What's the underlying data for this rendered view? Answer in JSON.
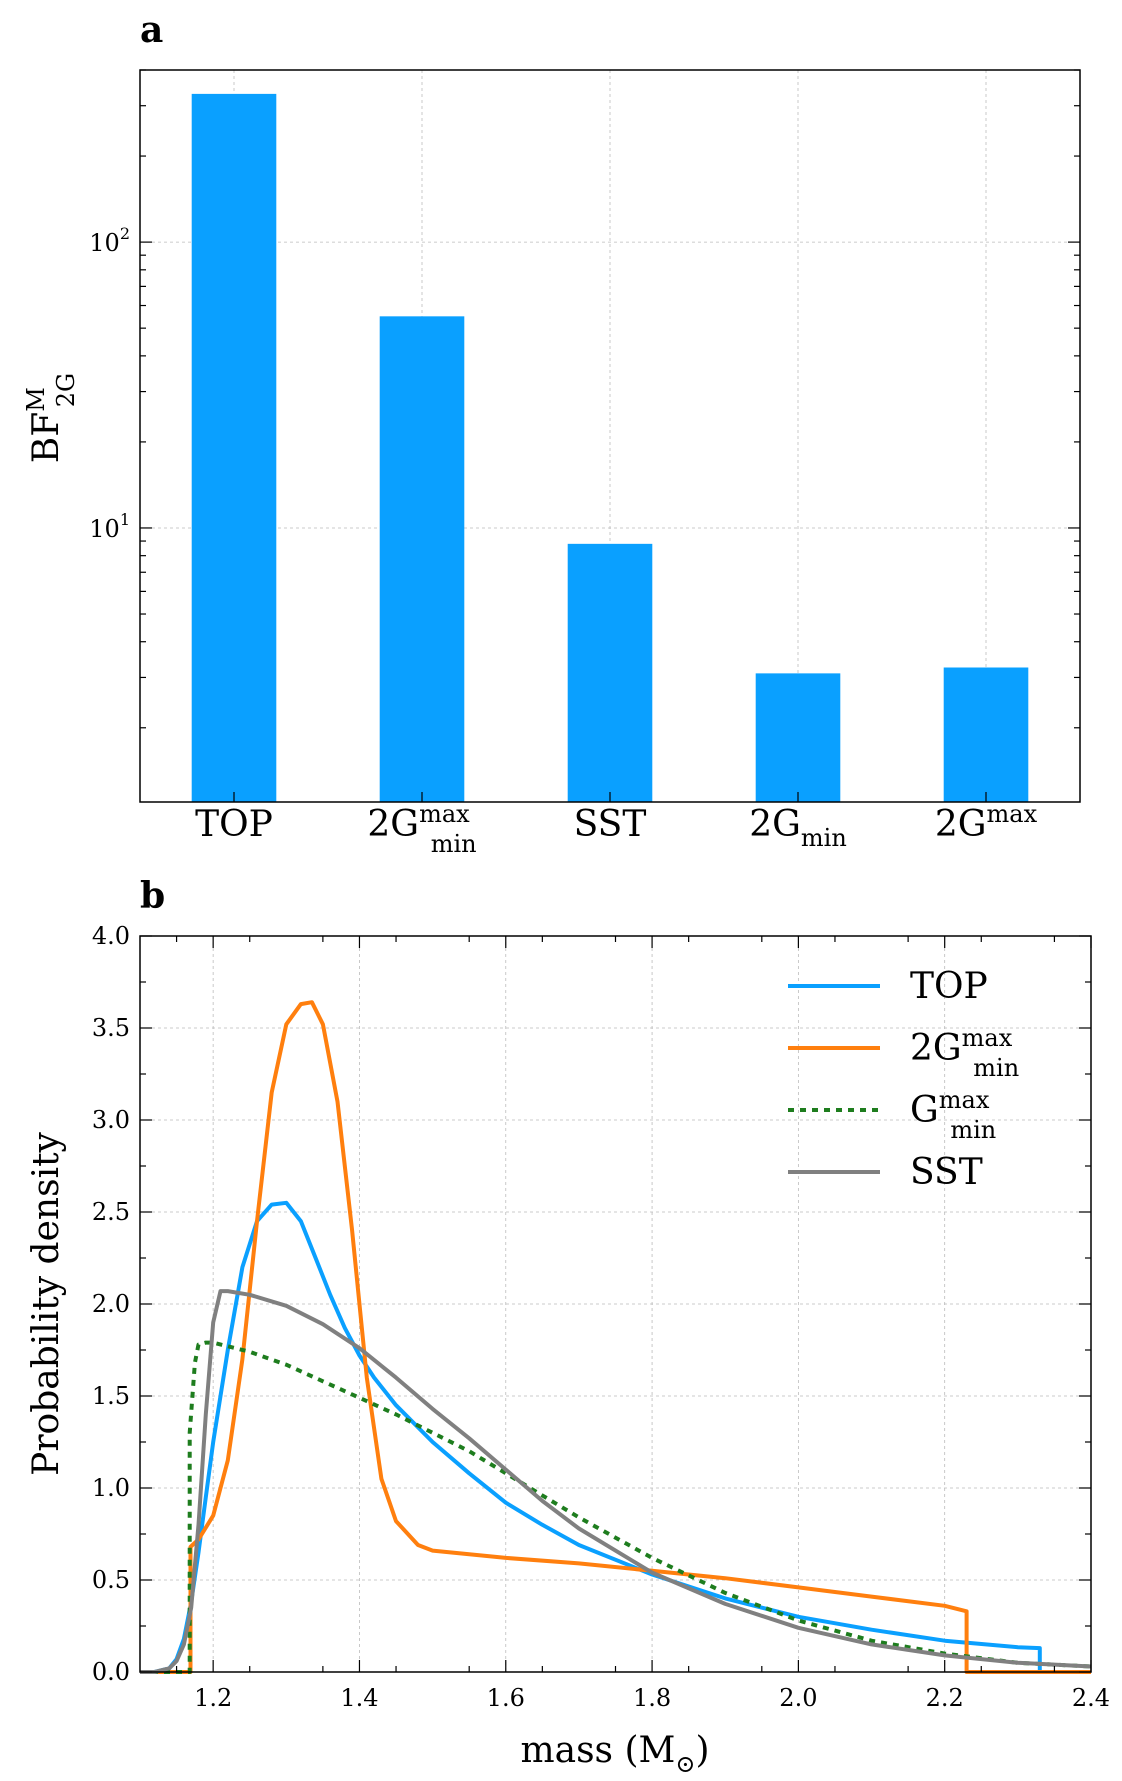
{
  "chart_data": [
    {
      "panel": "a",
      "type": "bar",
      "yscale": "log",
      "ylabel": {
        "base": "BF",
        "sup": "M",
        "sub": "2G"
      },
      "ylim": [
        1.1,
        400
      ],
      "yticks": [
        {
          "value": 10,
          "base": "10",
          "exp": "1"
        },
        {
          "value": 100,
          "base": "10",
          "exp": "2"
        }
      ],
      "color": "#0aa0ff",
      "categories": [
        {
          "id": "TOP",
          "base": "TOP",
          "sup": "",
          "sub": ""
        },
        {
          "id": "2Gminmax",
          "base": "2G",
          "sup": "max",
          "sub": "min"
        },
        {
          "id": "SST",
          "base": "SST",
          "sup": "",
          "sub": ""
        },
        {
          "id": "2Gmin",
          "base": "2G",
          "sup": "",
          "sub": "min"
        },
        {
          "id": "2Gmax",
          "base": "2G",
          "sup": "max",
          "sub": ""
        }
      ],
      "values": [
        330,
        55,
        8.8,
        3.1,
        3.25
      ]
    },
    {
      "panel": "b",
      "type": "line",
      "xlabel": {
        "text": "mass (M",
        "sub": "⊙",
        "close": ")"
      },
      "ylabel": "Probability density",
      "xlim": [
        1.1,
        2.4
      ],
      "ylim": [
        0,
        4.0
      ],
      "xticks": [
        "1.2",
        "1.4",
        "1.6",
        "1.8",
        "2.0",
        "2.2",
        "2.4"
      ],
      "yticks": [
        "0.0",
        "0.5",
        "1.0",
        "1.5",
        "2.0",
        "2.5",
        "3.0",
        "3.5",
        "4.0"
      ],
      "series": [
        {
          "name": "TOP",
          "legend": {
            "base": "TOP",
            "sup": "",
            "sub": ""
          },
          "color": "#0aa0ff",
          "dash": "",
          "x": [
            1.1,
            1.12,
            1.14,
            1.15,
            1.16,
            1.17,
            1.18,
            1.19,
            1.2,
            1.22,
            1.24,
            1.26,
            1.28,
            1.3,
            1.32,
            1.34,
            1.36,
            1.38,
            1.4,
            1.42,
            1.45,
            1.5,
            1.55,
            1.6,
            1.65,
            1.7,
            1.8,
            1.9,
            2.0,
            2.1,
            2.2,
            2.3,
            2.33,
            2.33,
            2.4
          ],
          "y": [
            0.0,
            0.0,
            0.02,
            0.07,
            0.18,
            0.38,
            0.65,
            0.95,
            1.25,
            1.75,
            2.2,
            2.45,
            2.54,
            2.55,
            2.45,
            2.25,
            2.05,
            1.87,
            1.72,
            1.6,
            1.45,
            1.25,
            1.08,
            0.92,
            0.8,
            0.69,
            0.53,
            0.4,
            0.3,
            0.23,
            0.17,
            0.135,
            0.13,
            0.0,
            0.0
          ]
        },
        {
          "name": "2Gminmax",
          "legend": {
            "base": "2G",
            "sup": "max",
            "sub": "min"
          },
          "color": "#ff7f0e",
          "dash": "",
          "x": [
            1.1,
            1.169,
            1.169,
            1.18,
            1.2,
            1.22,
            1.24,
            1.26,
            1.28,
            1.3,
            1.32,
            1.335,
            1.35,
            1.37,
            1.39,
            1.41,
            1.43,
            1.45,
            1.48,
            1.5,
            1.55,
            1.6,
            1.7,
            1.8,
            1.9,
            2.0,
            2.1,
            2.2,
            2.23,
            2.23,
            2.4
          ],
          "y": [
            0.0,
            0.0,
            0.68,
            0.72,
            0.85,
            1.15,
            1.7,
            2.45,
            3.15,
            3.52,
            3.63,
            3.64,
            3.52,
            3.1,
            2.4,
            1.6,
            1.05,
            0.82,
            0.69,
            0.66,
            0.64,
            0.62,
            0.59,
            0.55,
            0.51,
            0.46,
            0.41,
            0.36,
            0.33,
            0.0,
            0.0
          ]
        },
        {
          "name": "Gminmax",
          "legend": {
            "base": "G",
            "sup": "max",
            "sub": "min"
          },
          "color": "#1e7d1e",
          "dash": "6 6",
          "x": [
            1.1,
            1.168,
            1.168,
            1.175,
            1.18,
            1.19,
            1.2,
            1.22,
            1.25,
            1.3,
            1.35,
            1.4,
            1.45,
            1.5,
            1.55,
            1.6,
            1.65,
            1.7,
            1.8,
            1.9,
            2.0,
            2.1,
            2.2,
            2.3,
            2.4
          ],
          "y": [
            0.0,
            0.0,
            1.3,
            1.68,
            1.78,
            1.79,
            1.79,
            1.77,
            1.74,
            1.67,
            1.58,
            1.49,
            1.4,
            1.3,
            1.2,
            1.08,
            0.96,
            0.84,
            0.62,
            0.43,
            0.28,
            0.17,
            0.1,
            0.05,
            0.03
          ]
        },
        {
          "name": "SST",
          "legend": {
            "base": "SST",
            "sup": "",
            "sub": ""
          },
          "color": "#808080",
          "dash": "",
          "x": [
            1.1,
            1.12,
            1.14,
            1.15,
            1.16,
            1.17,
            1.18,
            1.19,
            1.2,
            1.21,
            1.22,
            1.25,
            1.3,
            1.35,
            1.4,
            1.45,
            1.5,
            1.55,
            1.6,
            1.65,
            1.7,
            1.8,
            1.9,
            2.0,
            2.1,
            2.2,
            2.3,
            2.4
          ],
          "y": [
            0.0,
            0.0,
            0.02,
            0.06,
            0.15,
            0.35,
            0.8,
            1.4,
            1.9,
            2.07,
            2.07,
            2.05,
            1.99,
            1.89,
            1.76,
            1.6,
            1.43,
            1.27,
            1.1,
            0.93,
            0.78,
            0.54,
            0.37,
            0.24,
            0.15,
            0.09,
            0.05,
            0.03
          ]
        }
      ]
    }
  ],
  "panels": {
    "a": "a",
    "b": "b"
  }
}
